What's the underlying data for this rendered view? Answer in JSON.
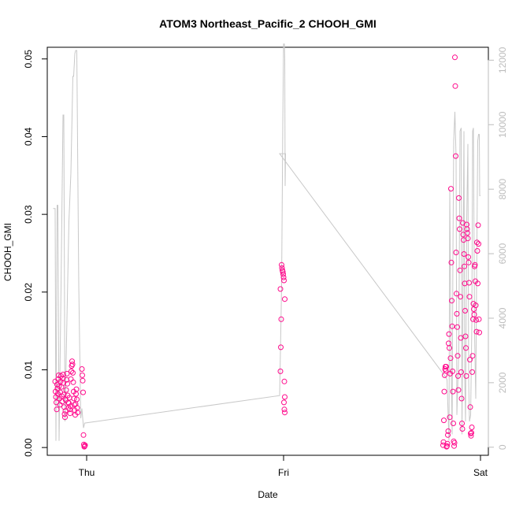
{
  "chart_data": {
    "type": "scatter",
    "title": "ATOM3 Northeast_Pacific_2 CHOOH_GMI",
    "xlabel": "Date",
    "ylabel": "CHOOH_GMI",
    "xlim": [
      -0.1,
      1.02
    ],
    "ylim": [
      -0.001,
      0.0515
    ],
    "y2lim": [
      -250,
      12400
    ],
    "x_ticks": [
      {
        "label": "Thu",
        "value": 0
      },
      {
        "label": "Fri",
        "value": 0.5
      },
      {
        "label": "Sat",
        "value": 1
      }
    ],
    "y_ticks": [
      {
        "label": "0.00",
        "value": 0
      },
      {
        "label": "0.01",
        "value": 0.01
      },
      {
        "label": "0.02",
        "value": 0.02
      },
      {
        "label": "0.03",
        "value": 0.03
      },
      {
        "label": "0.04",
        "value": 0.04
      },
      {
        "label": "0.05",
        "value": 0.05
      }
    ],
    "y2_ticks": [
      {
        "label": "0",
        "value": 0
      },
      {
        "label": "2000",
        "value": 2000
      },
      {
        "label": "4000",
        "value": 4000
      },
      {
        "label": "6000",
        "value": 6000
      },
      {
        "label": "8000",
        "value": 8000
      },
      {
        "label": "10000",
        "value": 10000
      },
      {
        "label": "12000",
        "value": 12000
      }
    ],
    "colors": {
      "points": "#ff0a8c",
      "altitude_line": "#c8c8c8",
      "right_axis": "#bdbdbd"
    },
    "series": [
      {
        "color": "#ff0a8c",
        "axis": "left",
        "marker": "open-circle",
        "points": [
          [
            -0.08,
            0.0085
          ],
          [
            -0.079,
            0.0072
          ],
          [
            -0.078,
            0.0065
          ],
          [
            -0.077,
            0.0058
          ],
          [
            -0.076,
            0.0049
          ],
          [
            -0.075,
            0.0081
          ],
          [
            -0.074,
            0.0076
          ],
          [
            -0.073,
            0.0069
          ],
          [
            -0.072,
            0.0088
          ],
          [
            -0.071,
            0.0093
          ],
          [
            -0.07,
            0.0079
          ],
          [
            -0.069,
            0.0063
          ],
          [
            -0.068,
            0.0055
          ],
          [
            -0.067,
            0.0071
          ],
          [
            -0.066,
            0.0085
          ],
          [
            -0.065,
            0.0092
          ],
          [
            -0.064,
            0.0078
          ],
          [
            -0.063,
            0.0066
          ],
          [
            -0.062,
            0.0059
          ],
          [
            -0.061,
            0.0089
          ],
          [
            -0.06,
            0.0094
          ],
          [
            -0.059,
            0.0083
          ],
          [
            -0.058,
            0.0068
          ],
          [
            -0.057,
            0.0052
          ],
          [
            -0.056,
            0.0043
          ],
          [
            -0.055,
            0.0039
          ],
          [
            -0.054,
            0.0047
          ],
          [
            -0.053,
            0.0061
          ],
          [
            -0.052,
            0.0074
          ],
          [
            -0.051,
            0.0087
          ],
          [
            -0.05,
            0.0095
          ],
          [
            -0.049,
            0.0082
          ],
          [
            -0.048,
            0.0067
          ],
          [
            -0.047,
            0.0058
          ],
          [
            -0.046,
            0.0051
          ],
          [
            -0.045,
            0.0057
          ],
          [
            -0.044,
            0.0064
          ],
          [
            -0.043,
            0.0049
          ],
          [
            -0.042,
            0.0044
          ],
          [
            -0.041,
            0.0053
          ],
          [
            -0.04,
            0.0088
          ],
          [
            -0.039,
            0.0098
          ],
          [
            -0.038,
            0.0105
          ],
          [
            -0.037,
            0.0111
          ],
          [
            -0.036,
            0.0107
          ],
          [
            -0.035,
            0.0096
          ],
          [
            -0.034,
            0.0084
          ],
          [
            -0.033,
            0.0072
          ],
          [
            -0.032,
            0.0063
          ],
          [
            -0.031,
            0.0055
          ],
          [
            -0.03,
            0.0048
          ],
          [
            -0.029,
            0.0042
          ],
          [
            -0.028,
            0.0056
          ],
          [
            -0.027,
            0.0069
          ],
          [
            -0.026,
            0.0075
          ],
          [
            -0.025,
            0.0062
          ],
          [
            -0.024,
            0.0051
          ],
          [
            -0.023,
            0.0045
          ],
          [
            -0.012,
            0.0101
          ],
          [
            -0.011,
            0.0093
          ],
          [
            -0.01,
            0.0086
          ],
          [
            -0.009,
            0.0071
          ],
          [
            -0.008,
            0.0016
          ],
          [
            -0.007,
            0.0004
          ],
          [
            -0.006,
            0.0001
          ],
          [
            -0.005,
            0.0002
          ],
          [
            -0.004,
            0.0003
          ],
          [
            0.495,
            0.0235
          ],
          [
            0.496,
            0.0231
          ],
          [
            0.497,
            0.0228
          ],
          [
            0.498,
            0.0226
          ],
          [
            0.499,
            0.0223
          ],
          [
            0.5,
            0.0219
          ],
          [
            0.501,
            0.0215
          ],
          [
            0.492,
            0.0204
          ],
          [
            0.503,
            0.0191
          ],
          [
            0.494,
            0.0165
          ],
          [
            0.493,
            0.0129
          ],
          [
            0.492,
            0.0098
          ],
          [
            0.502,
            0.0085
          ],
          [
            0.503,
            0.0065
          ],
          [
            0.501,
            0.0058
          ],
          [
            0.502,
            0.0049
          ],
          [
            0.503,
            0.0045
          ],
          [
            0.905,
            0.0003
          ],
          [
            0.906,
            0.0007
          ],
          [
            0.907,
            0.0035
          ],
          [
            0.908,
            0.0072
          ],
          [
            0.909,
            0.0093
          ],
          [
            0.91,
            0.0101
          ],
          [
            0.911,
            0.0104
          ],
          [
            0.912,
            0.0099
          ],
          [
            0.913,
            0.0104
          ],
          [
            0.914,
            0.0001
          ],
          [
            0.915,
            0.0002
          ],
          [
            0.916,
            0.0005
          ],
          [
            0.917,
            0.0016
          ],
          [
            0.918,
            0.0021
          ],
          [
            0.919,
            0.0134
          ],
          [
            0.92,
            0.0146
          ],
          [
            0.921,
            0.0128
          ],
          [
            0.922,
            0.0039
          ],
          [
            0.923,
            0.0095
          ],
          [
            0.924,
            0.0115
          ],
          [
            0.925,
            0.0333
          ],
          [
            0.926,
            0.0238
          ],
          [
            0.927,
            0.0189
          ],
          [
            0.928,
            0.0156
          ],
          [
            0.929,
            0.0098
          ],
          [
            0.93,
            0.0072
          ],
          [
            0.931,
            0.0031
          ],
          [
            0.932,
            0.0008
          ],
          [
            0.933,
            0.0002
          ],
          [
            0.934,
            0.0006
          ],
          [
            0.935,
            0.0502
          ],
          [
            0.936,
            0.0465
          ],
          [
            0.937,
            0.0375
          ],
          [
            0.938,
            0.0251
          ],
          [
            0.939,
            0.0198
          ],
          [
            0.94,
            0.0172
          ],
          [
            0.941,
            0.0155
          ],
          [
            0.942,
            0.0118
          ],
          [
            0.943,
            0.0092
          ],
          [
            0.944,
            0.0074
          ],
          [
            0.945,
            0.0321
          ],
          [
            0.946,
            0.0295
          ],
          [
            0.947,
            0.0281
          ],
          [
            0.948,
            0.0228
          ],
          [
            0.949,
            0.0194
          ],
          [
            0.95,
            0.0141
          ],
          [
            0.951,
            0.0097
          ],
          [
            0.952,
            0.0063
          ],
          [
            0.953,
            0.0031
          ],
          [
            0.954,
            0.0024
          ],
          [
            0.955,
            0.0289
          ],
          [
            0.956,
            0.0274
          ],
          [
            0.957,
            0.0267
          ],
          [
            0.958,
            0.0249
          ],
          [
            0.959,
            0.0233
          ],
          [
            0.96,
            0.0211
          ],
          [
            0.961,
            0.0176
          ],
          [
            0.962,
            0.0143
          ],
          [
            0.963,
            0.0128
          ],
          [
            0.964,
            0.0092
          ],
          [
            0.965,
            0.0287
          ],
          [
            0.966,
            0.0281
          ],
          [
            0.967,
            0.0276
          ],
          [
            0.968,
            0.0269
          ],
          [
            0.969,
            0.0245
          ],
          [
            0.97,
            0.0238
          ],
          [
            0.971,
            0.0212
          ],
          [
            0.972,
            0.0194
          ],
          [
            0.973,
            0.0113
          ],
          [
            0.974,
            0.0052
          ],
          [
            0.975,
            0.0018
          ],
          [
            0.976,
            0.0015
          ],
          [
            0.977,
            0.0019
          ],
          [
            0.978,
            0.0026
          ],
          [
            0.979,
            0.0097
          ],
          [
            0.98,
            0.0118
          ],
          [
            0.981,
            0.0165
          ],
          [
            0.982,
            0.0185
          ],
          [
            0.983,
            0.0178
          ],
          [
            0.984,
            0.0171
          ],
          [
            0.985,
            0.0233
          ],
          [
            0.986,
            0.0235
          ],
          [
            0.987,
            0.0214
          ],
          [
            0.988,
            0.0183
          ],
          [
            0.989,
            0.0164
          ],
          [
            0.99,
            0.0149
          ],
          [
            0.991,
            0.0264
          ],
          [
            0.992,
            0.0253
          ],
          [
            0.993,
            0.0211
          ],
          [
            0.994,
            0.0286
          ],
          [
            0.995,
            0.0262
          ],
          [
            0.996,
            0.0165
          ],
          [
            0.997,
            0.0148
          ]
        ]
      }
    ],
    "altitude_line": {
      "color": "#c8c8c8",
      "axis": "right",
      "points": [
        [
          -0.085,
          7400
        ],
        [
          -0.08,
          7400
        ],
        [
          -0.078,
          200
        ],
        [
          -0.075,
          7500
        ],
        [
          -0.073,
          7500
        ],
        [
          -0.07,
          200
        ],
        [
          -0.065,
          5000
        ],
        [
          -0.06,
          10300
        ],
        [
          -0.058,
          10300
        ],
        [
          -0.055,
          800
        ],
        [
          -0.05,
          4000
        ],
        [
          -0.045,
          7000
        ],
        [
          -0.04,
          8500
        ],
        [
          -0.035,
          11500
        ],
        [
          -0.033,
          11500
        ],
        [
          -0.03,
          12200
        ],
        [
          -0.028,
          12300
        ],
        [
          -0.025,
          12300
        ],
        [
          -0.02,
          5000
        ],
        [
          -0.015,
          900
        ],
        [
          -0.012,
          1200
        ],
        [
          -0.008,
          600
        ],
        [
          -0.005,
          750
        ],
        [
          0.49,
          1600
        ],
        [
          0.495,
          5000
        ],
        [
          0.498,
          10000
        ],
        [
          0.5,
          12500
        ],
        [
          0.502,
          12500
        ],
        [
          0.503,
          12000
        ],
        [
          0.504,
          8100
        ],
        [
          0.505,
          9100
        ],
        [
          0.49,
          9100
        ],
        [
          0.91,
          2200
        ],
        [
          0.915,
          2100
        ],
        [
          0.92,
          200
        ],
        [
          0.922,
          8000
        ],
        [
          0.925,
          3200
        ],
        [
          0.928,
          400
        ],
        [
          0.93,
          6000
        ],
        [
          0.932,
          9500
        ],
        [
          0.935,
          10400
        ],
        [
          0.938,
          9000
        ],
        [
          0.94,
          1000
        ],
        [
          0.945,
          3000
        ],
        [
          0.948,
          9800
        ],
        [
          0.951,
          9900
        ],
        [
          0.953,
          400
        ],
        [
          0.955,
          4000
        ],
        [
          0.958,
          9800
        ],
        [
          0.96,
          2200
        ],
        [
          0.962,
          800
        ],
        [
          0.965,
          7000
        ],
        [
          0.968,
          9400
        ],
        [
          0.97,
          2000
        ],
        [
          0.972,
          800
        ],
        [
          0.975,
          1000
        ],
        [
          0.978,
          3800
        ],
        [
          0.98,
          9800
        ],
        [
          0.982,
          9900
        ],
        [
          0.985,
          3500
        ],
        [
          0.988,
          1500
        ],
        [
          0.99,
          5000
        ],
        [
          0.993,
          9500
        ],
        [
          0.995,
          9700
        ],
        [
          0.997,
          9700
        ],
        [
          0.998,
          7800
        ],
        [
          1.0,
          7800
        ]
      ]
    }
  }
}
